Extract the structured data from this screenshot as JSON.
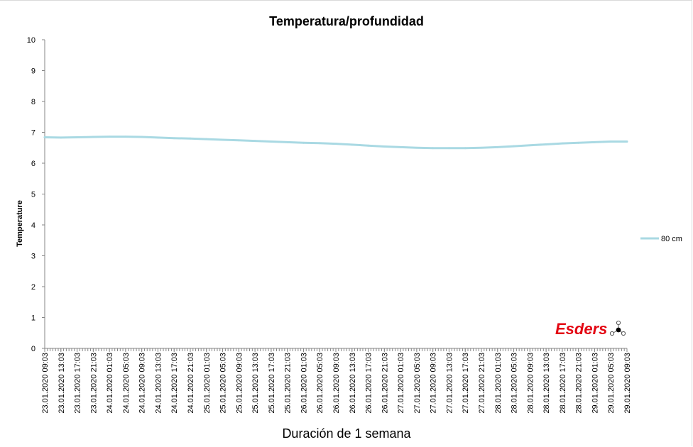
{
  "chart_data": {
    "type": "line",
    "title": "Temperatura/profundidad",
    "xlabel": "Duración de 1 semana",
    "ylabel": "Temperature",
    "ylim": [
      0,
      10
    ],
    "yticks": [
      "0",
      "1",
      "2",
      "3",
      "4",
      "5",
      "6",
      "7",
      "8",
      "9",
      "10"
    ],
    "grid": false,
    "legend_position": "right",
    "x": [
      "23.01.2020 09:03",
      "23.01.2020 13:03",
      "23.01.2020 17:03",
      "23.01.2020 21:03",
      "24.01.2020 01:03",
      "24.01.2020 05:03",
      "24.01.2020 09:03",
      "24.01.2020 13:03",
      "24.01.2020 17:03",
      "24.01.2020 21:03",
      "25.01.2020 01:03",
      "25.01.2020 05:03",
      "25.01.2020 09:03",
      "25.01.2020 13:03",
      "25.01.2020 17:03",
      "25.01.2020 21:03",
      "26.01.2020 01:03",
      "26.01.2020 05:03",
      "26.01.2020 09:03",
      "26.01.2020 13:03",
      "26.01.2020 17:03",
      "26.01.2020 21:03",
      "27.01.2020 01:03",
      "27.01.2020 05:03",
      "27.01.2020 09:03",
      "27.01.2020 13:03",
      "27.01.2020 17:03",
      "27.01.2020 21:03",
      "28.01.2020 01:03",
      "28.01.2020 05:03",
      "28.01.2020 09:03",
      "28.01.2020 13:03",
      "28.01.2020 17:03",
      "28.01.2020 21:03",
      "29.01.2020 01:03",
      "29.01.2020 05:03",
      "29.01.2020 09:03"
    ],
    "series": [
      {
        "name": "80 cm",
        "color": "#a9d9e3",
        "values": [
          6.84,
          6.83,
          6.84,
          6.85,
          6.86,
          6.86,
          6.85,
          6.83,
          6.81,
          6.8,
          6.78,
          6.76,
          6.74,
          6.72,
          6.7,
          6.68,
          6.66,
          6.65,
          6.63,
          6.6,
          6.57,
          6.54,
          6.52,
          6.5,
          6.49,
          6.49,
          6.49,
          6.5,
          6.52,
          6.55,
          6.58,
          6.61,
          6.64,
          6.66,
          6.68,
          6.7,
          6.7
        ]
      }
    ]
  },
  "logo": {
    "text": "Esders",
    "color": "#e30613"
  }
}
